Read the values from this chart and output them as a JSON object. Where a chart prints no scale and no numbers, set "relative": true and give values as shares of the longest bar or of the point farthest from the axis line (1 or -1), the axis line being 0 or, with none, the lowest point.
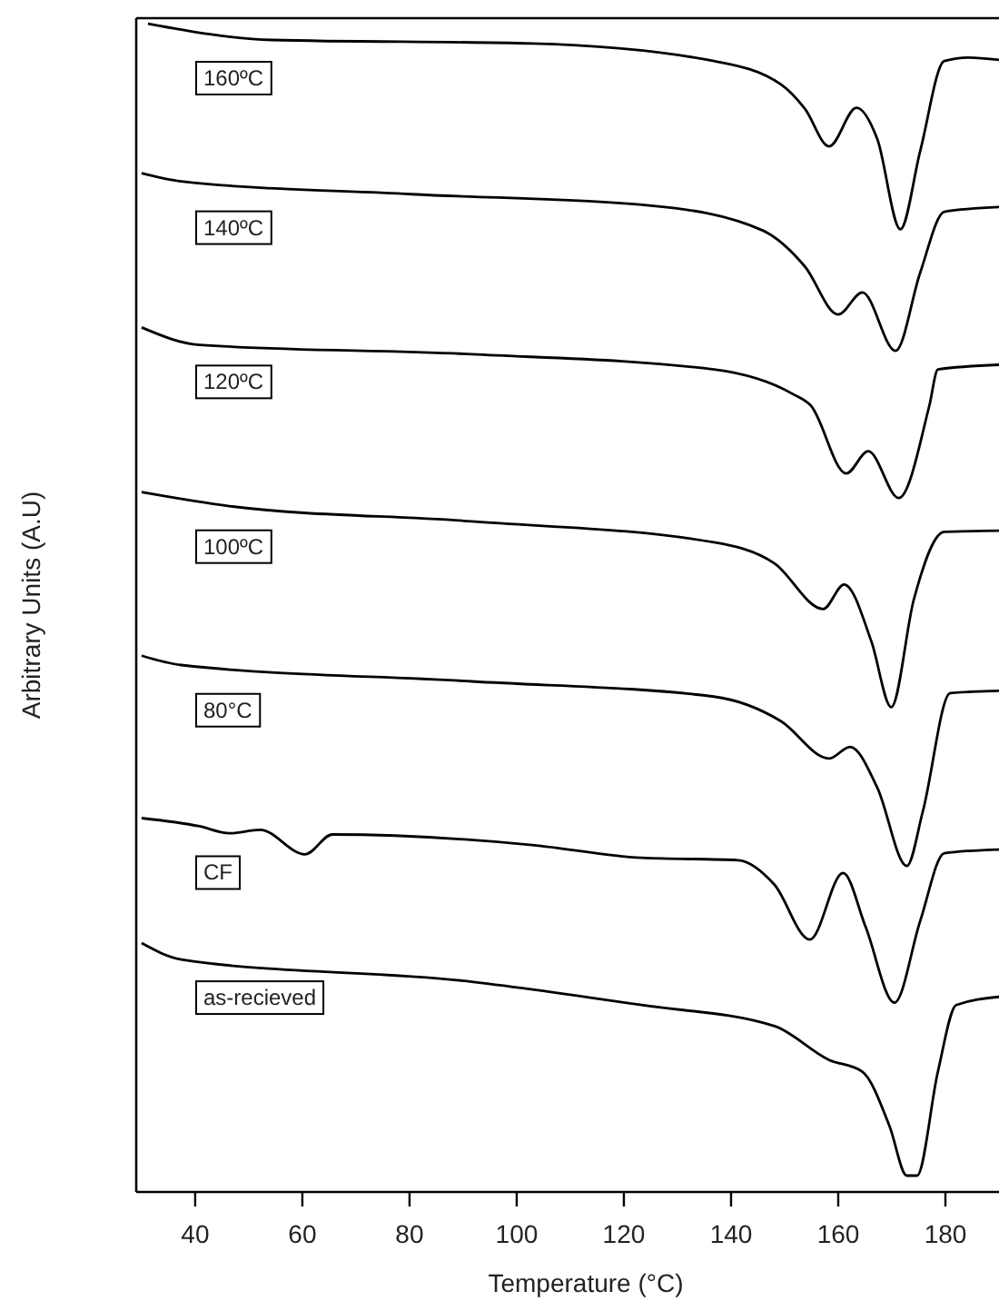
{
  "chart_data": {
    "type": "line",
    "relative": true,
    "xlabel": "Temperature (°C)",
    "ylabel": "Arbitrary Units (A.U)",
    "xlim": [
      29,
      190
    ],
    "xticks": [
      40,
      60,
      80,
      100,
      120,
      140,
      160,
      180
    ],
    "grid": false,
    "marker": "none",
    "line_style": "solid",
    "series": [
      {
        "name": "160ºC",
        "color": "#000000",
        "x": [
          31.2,
          54.3,
          102.9,
          136.8,
          149.3,
          153.8,
          158.3,
          163.4,
          167.3,
          171.6,
          175.3,
          179.8,
          184.3,
          190
        ],
        "values": [
          1.0,
          0.986,
          0.983,
          0.968,
          0.948,
          0.927,
          0.895,
          0.928,
          0.901,
          0.824,
          0.891,
          0.968,
          0.971,
          0.969
        ]
      },
      {
        "name": "140ºC",
        "color": "#000000",
        "x": [
          30,
          37.4,
          80.3,
          125.5,
          145.9,
          153.8,
          160,
          164.5,
          170.7,
          175.3,
          179.8,
          190
        ],
        "values": [
          0.872,
          0.865,
          0.854,
          0.844,
          0.823,
          0.792,
          0.751,
          0.77,
          0.72,
          0.787,
          0.839,
          0.843
        ]
      },
      {
        "name": "120ºC",
        "color": "#000000",
        "x": [
          30,
          40.8,
          91.6,
          136.8,
          151.5,
          154.9,
          161.5,
          165.6,
          171.3,
          177,
          178.6,
          190
        ],
        "values": [
          0.74,
          0.725,
          0.717,
          0.704,
          0.683,
          0.673,
          0.615,
          0.634,
          0.594,
          0.673,
          0.704,
          0.708
        ]
      },
      {
        "name": "100ºC",
        "color": "#000000",
        "x": [
          30,
          46.4,
          91.6,
          136.8,
          148.1,
          157.2,
          161.1,
          166.2,
          169.9,
          174.1,
          179.8,
          190
        ],
        "values": [
          0.599,
          0.587,
          0.574,
          0.556,
          0.538,
          0.499,
          0.52,
          0.471,
          0.415,
          0.507,
          0.565,
          0.566
        ]
      },
      {
        "name": "80°C",
        "color": "#000000",
        "x": [
          30,
          37.4,
          91.6,
          136.8,
          149.3,
          158.3,
          162.2,
          167.3,
          172.8,
          175.8,
          180.9,
          190
        ],
        "values": [
          0.459,
          0.451,
          0.437,
          0.424,
          0.403,
          0.371,
          0.381,
          0.346,
          0.279,
          0.326,
          0.427,
          0.429
        ]
      },
      {
        "name": "CF",
        "color": "#000000",
        "x": [
          30,
          40.8,
          46.4,
          52.1,
          60.5,
          65.6,
          102.9,
          123.3,
          141.3,
          148.1,
          154.7,
          160.9,
          165.1,
          170.5,
          175.3,
          179.8,
          190
        ],
        "values": [
          0.32,
          0.313,
          0.307,
          0.31,
          0.289,
          0.306,
          0.297,
          0.286,
          0.284,
          0.263,
          0.216,
          0.273,
          0.227,
          0.162,
          0.232,
          0.29,
          0.293
        ]
      },
      {
        "name": "as-recieved",
        "color": "#000000",
        "x": [
          30,
          37.4,
          91.6,
          123.3,
          148.1,
          158.3,
          164.5,
          169.6,
          172.8,
          174.7,
          178.6,
          182,
          190
        ],
        "values": [
          0.213,
          0.199,
          0.18,
          0.16,
          0.142,
          0.113,
          0.103,
          0.056,
          0.014,
          0.014,
          0.103,
          0.16,
          0.167
        ]
      }
    ]
  }
}
